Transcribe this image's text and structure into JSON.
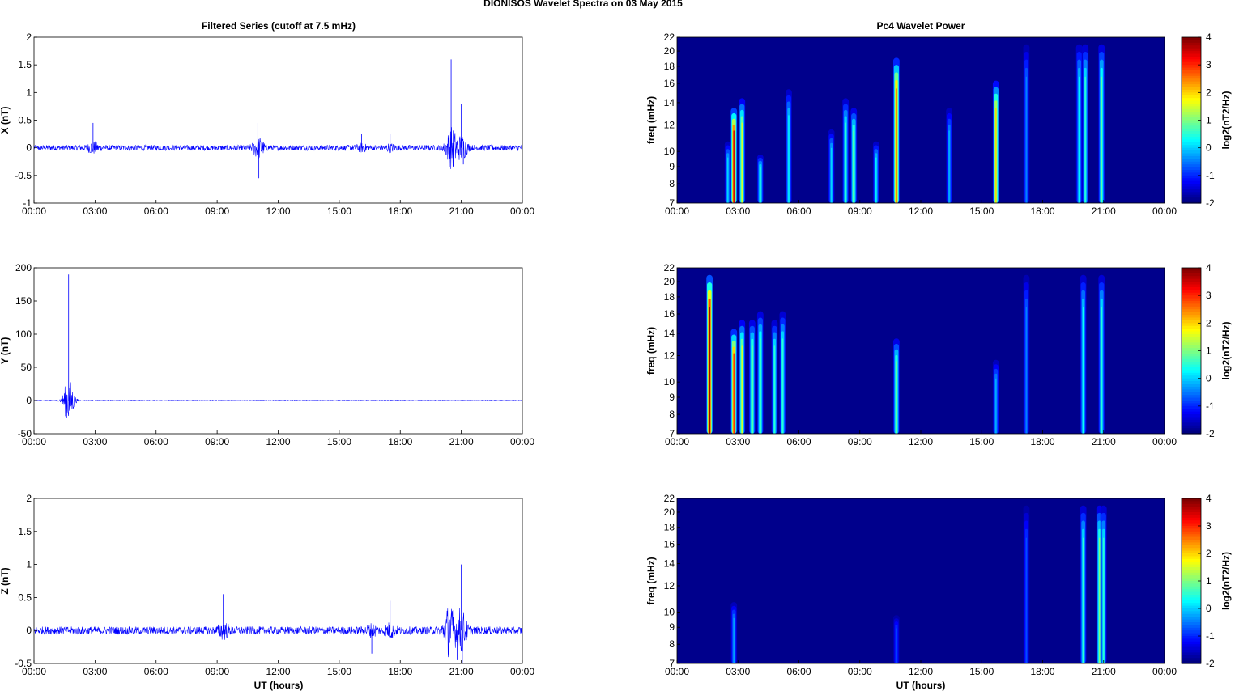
{
  "figure": {
    "suptitle": "DIONISOS Wavelet Spectra on 03 May       2015",
    "left_title": "Filtered Series (cutoff at 7.5 mHz)",
    "right_title": "Pc4 Wavelet Power",
    "xlabel": "UT (hours)",
    "freq_label": "freq (mHz)",
    "colorbar_label": "log2(nT2/Hz)",
    "colors": {
      "series_line": "#0000ff",
      "background": "#00008c"
    }
  },
  "chart_data": [
    {
      "type": "line",
      "panel": "X",
      "ylabel": "X (nT)",
      "x_range": [
        "00:00",
        "00:00"
      ],
      "x_hours": [
        0,
        24
      ],
      "x_ticks": [
        "00:00",
        "03:00",
        "06:00",
        "09:00",
        "12:00",
        "15:00",
        "18:00",
        "21:00",
        "00:00"
      ],
      "ylim": [
        -1,
        2
      ],
      "y_ticks": [
        "2",
        "1.5",
        "1",
        "0.5",
        "0",
        "-0.5",
        "-1"
      ],
      "noise_amplitude_nT": 0.05,
      "bursts": [
        {
          "t": 2.9,
          "amp": 0.45
        },
        {
          "t": 11.0,
          "amp": 0.45
        },
        {
          "t": 11.05,
          "amp": -0.55
        },
        {
          "t": 16.1,
          "amp": 0.25
        },
        {
          "t": 17.5,
          "amp": 0.25
        },
        {
          "t": 20.5,
          "amp": 1.6
        },
        {
          "t": 20.6,
          "amp": -0.35
        },
        {
          "t": 21.0,
          "amp": 0.8
        },
        {
          "t": 21.1,
          "amp": -0.3
        }
      ]
    },
    {
      "type": "line",
      "panel": "Y",
      "ylabel": "Y (nT)",
      "x_range": [
        "00:00",
        "00:00"
      ],
      "x_hours": [
        0,
        24
      ],
      "x_ticks": [
        "00:00",
        "03:00",
        "06:00",
        "09:00",
        "12:00",
        "15:00",
        "18:00",
        "21:00",
        "00:00"
      ],
      "ylim": [
        -50,
        200
      ],
      "y_ticks": [
        "200",
        "150",
        "100",
        "50",
        "0",
        "-50"
      ],
      "noise_amplitude_nT": 0.5,
      "bursts": [
        {
          "t": 1.7,
          "amp": 190
        },
        {
          "t": 1.72,
          "amp": -4
        }
      ]
    },
    {
      "type": "line",
      "panel": "Z",
      "ylabel": "Z (nT)",
      "x_range": [
        "00:00",
        "00:00"
      ],
      "x_hours": [
        0,
        24
      ],
      "x_ticks": [
        "00:00",
        "03:00",
        "06:00",
        "09:00",
        "12:00",
        "15:00",
        "18:00",
        "21:00",
        "00:00"
      ],
      "ylim": [
        -0.5,
        2
      ],
      "y_ticks": [
        "2",
        "1.5",
        "1",
        "0.5",
        "0",
        "-0.5"
      ],
      "noise_amplitude_nT": 0.06,
      "bursts": [
        {
          "t": 9.3,
          "amp": 0.55
        },
        {
          "t": 16.6,
          "amp": -0.35
        },
        {
          "t": 17.5,
          "amp": 0.45
        },
        {
          "t": 20.4,
          "amp": 1.93
        },
        {
          "t": 20.8,
          "amp": -0.45
        },
        {
          "t": 21.0,
          "amp": 1.0
        },
        {
          "t": 21.05,
          "amp": -0.5
        }
      ]
    },
    {
      "type": "heatmap",
      "panel": "X spectrum",
      "ylabel": "freq (mHz)",
      "x_hours": [
        0,
        24
      ],
      "freq_range_mHz": [
        7,
        22
      ],
      "x_ticks": [
        "00:00",
        "03:00",
        "06:00",
        "09:00",
        "12:00",
        "15:00",
        "18:00",
        "21:00",
        "00:00"
      ],
      "y_ticks": [
        "22",
        "20",
        "18",
        "16",
        "14",
        "12",
        "10",
        "9",
        "8",
        "7"
      ],
      "colorbar": {
        "range": [
          -2,
          4
        ],
        "ticks": [
          "4",
          "3",
          "2",
          "1",
          "0",
          "-1",
          "-2"
        ]
      },
      "bursts": [
        {
          "t": 2.5,
          "v": 0.0,
          "f": 11
        },
        {
          "t": 2.8,
          "v": 3.5,
          "f": 14
        },
        {
          "t": 3.2,
          "v": 1.5,
          "f": 15
        },
        {
          "t": 4.1,
          "v": 0.5,
          "f": 10
        },
        {
          "t": 5.5,
          "v": 0.2,
          "f": 16
        },
        {
          "t": 7.6,
          "v": 0.0,
          "f": 12
        },
        {
          "t": 8.3,
          "v": 0.5,
          "f": 15
        },
        {
          "t": 8.7,
          "v": 1.0,
          "f": 14
        },
        {
          "t": 9.8,
          "v": 0.2,
          "f": 11
        },
        {
          "t": 10.8,
          "v": 2.8,
          "f": 20
        },
        {
          "t": 13.4,
          "v": -0.2,
          "f": 14
        },
        {
          "t": 15.7,
          "v": 2.0,
          "f": 17
        },
        {
          "t": 17.2,
          "v": -0.5,
          "f": 22
        },
        {
          "t": 19.8,
          "v": 0.2,
          "f": 22
        },
        {
          "t": 20.1,
          "v": 0.5,
          "f": 22
        },
        {
          "t": 20.9,
          "v": 0.8,
          "f": 22
        }
      ]
    },
    {
      "type": "heatmap",
      "panel": "Y spectrum",
      "ylabel": "freq (mHz)",
      "x_hours": [
        0,
        24
      ],
      "freq_range_mHz": [
        7,
        22
      ],
      "x_ticks": [
        "00:00",
        "03:00",
        "06:00",
        "09:00",
        "12:00",
        "15:00",
        "18:00",
        "21:00",
        "00:00"
      ],
      "y_ticks": [
        "22",
        "20",
        "18",
        "16",
        "14",
        "12",
        "10",
        "9",
        "8",
        "7"
      ],
      "colorbar": {
        "range": [
          -2,
          4
        ],
        "ticks": [
          "4",
          "3",
          "2",
          "1",
          "0",
          "-1",
          "-2"
        ]
      },
      "bursts": [
        {
          "t": 1.6,
          "v": 4.0,
          "f": 22
        },
        {
          "t": 2.8,
          "v": 3.0,
          "f": 15
        },
        {
          "t": 3.2,
          "v": 1.5,
          "f": 16
        },
        {
          "t": 3.7,
          "v": 1.0,
          "f": 16
        },
        {
          "t": 4.1,
          "v": 0.8,
          "f": 17
        },
        {
          "t": 4.8,
          "v": 0.5,
          "f": 16
        },
        {
          "t": 5.2,
          "v": 0.5,
          "f": 17
        },
        {
          "t": 10.8,
          "v": 1.0,
          "f": 14
        },
        {
          "t": 15.7,
          "v": -0.2,
          "f": 12
        },
        {
          "t": 17.2,
          "v": -0.5,
          "f": 22
        },
        {
          "t": 20.0,
          "v": 0.3,
          "f": 22
        },
        {
          "t": 20.9,
          "v": 0.5,
          "f": 22
        }
      ]
    },
    {
      "type": "heatmap",
      "panel": "Z spectrum",
      "ylabel": "freq (mHz)",
      "x_hours": [
        0,
        24
      ],
      "freq_range_mHz": [
        7,
        22
      ],
      "x_ticks": [
        "00:00",
        "03:00",
        "06:00",
        "09:00",
        "12:00",
        "15:00",
        "18:00",
        "21:00",
        "00:00"
      ],
      "y_ticks": [
        "22",
        "20",
        "18",
        "16",
        "14",
        "12",
        "10",
        "9",
        "8",
        "7"
      ],
      "colorbar": {
        "range": [
          -2,
          4
        ],
        "ticks": [
          "4",
          "3",
          "2",
          "1",
          "0",
          "-1",
          "-2"
        ]
      },
      "bursts": [
        {
          "t": 2.8,
          "v": -0.3,
          "f": 11
        },
        {
          "t": 10.8,
          "v": -0.8,
          "f": 10
        },
        {
          "t": 17.2,
          "v": -0.8,
          "f": 22
        },
        {
          "t": 20.0,
          "v": 0.5,
          "f": 22
        },
        {
          "t": 20.8,
          "v": 1.0,
          "f": 22
        },
        {
          "t": 21.0,
          "v": 0.5,
          "f": 22
        }
      ]
    }
  ]
}
